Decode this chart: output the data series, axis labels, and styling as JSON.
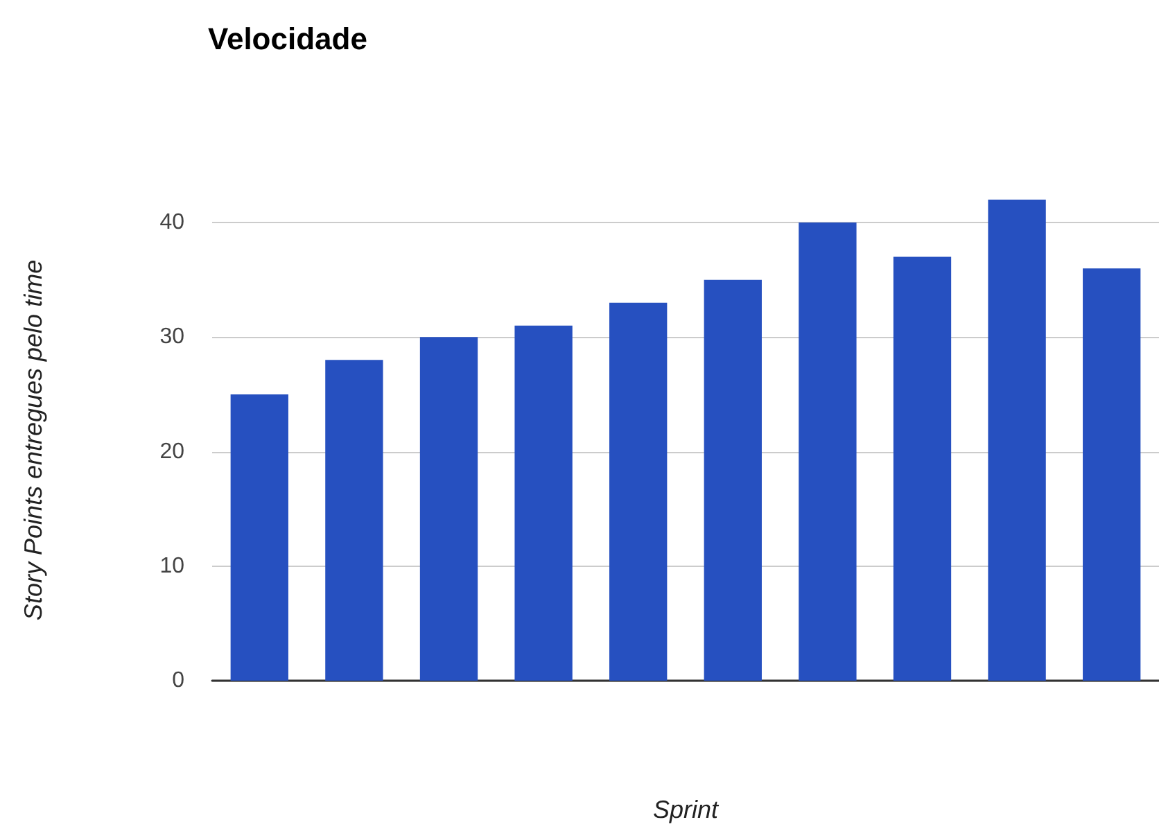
{
  "chart_data": {
    "type": "bar",
    "title": "Velocidade",
    "xlabel": "Sprint",
    "ylabel": "Story Points entregues pelo time",
    "categories": [
      null,
      null,
      null,
      null,
      null,
      null,
      null,
      null,
      null,
      null
    ],
    "values": [
      25,
      28,
      30,
      31,
      33,
      35,
      40,
      37,
      42,
      36
    ],
    "color": "#2650c0",
    "ylim": [
      0,
      42
    ],
    "yticks": [
      0,
      10,
      20,
      30,
      40
    ],
    "grid": "y"
  }
}
